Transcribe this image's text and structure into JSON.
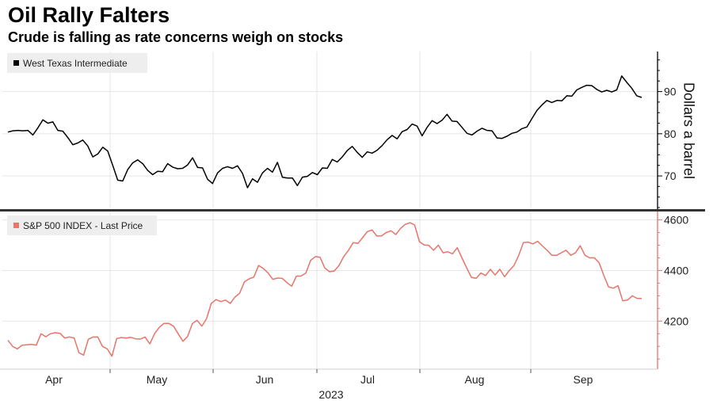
{
  "header": {
    "title": "Oil Rally Falters",
    "subtitle": "Crude is falling as rate concerns weigh on stocks"
  },
  "colors": {
    "wti": "#000000",
    "sp500": "#e8746a",
    "grid": "#e6e6e6",
    "axis": "#222222",
    "legend_bg": "#eeeeee",
    "divider": "#333333"
  },
  "chart_data": [
    {
      "type": "line",
      "legend": "West Texas Intermediate",
      "ylabel": "Dollars a barrel",
      "ylim": [
        62.5,
        99.5
      ],
      "yticks": [
        70,
        80,
        90
      ],
      "grid": true,
      "legend_position": "top-left",
      "series": [
        {
          "name": "West Texas Intermediate",
          "values": [
            80.4,
            80.7,
            80.8,
            80.7,
            80.8,
            79.7,
            81.4,
            83.3,
            82.5,
            82.8,
            80.8,
            80.6,
            79.1,
            77.4,
            77.8,
            78.5,
            77.1,
            74.5,
            75.2,
            76.8,
            75.9,
            72.5,
            69.0,
            68.8,
            71.5,
            73.1,
            73.8,
            72.9,
            71.3,
            70.3,
            71.1,
            71.0,
            72.9,
            72.1,
            71.7,
            71.8,
            72.6,
            74.3,
            72.0,
            71.9,
            69.2,
            68.2,
            70.7,
            71.8,
            72.2,
            71.8,
            72.4,
            70.6,
            67.2,
            69.3,
            68.5,
            70.7,
            71.8,
            70.9,
            73.2,
            69.7,
            69.5,
            69.5,
            67.7,
            69.7,
            69.9,
            70.8,
            70.3,
            71.9,
            71.8,
            73.9,
            73.3,
            74.5,
            76.0,
            77.0,
            75.6,
            74.4,
            75.7,
            75.4,
            76.1,
            77.2,
            78.6,
            79.6,
            78.8,
            80.5,
            81.0,
            82.3,
            81.8,
            79.5,
            81.5,
            83.1,
            82.4,
            83.2,
            84.6,
            83.0,
            82.9,
            81.5,
            80.1,
            79.7,
            80.6,
            81.3,
            80.8,
            80.7,
            79.0,
            78.9,
            79.4,
            80.1,
            80.4,
            81.2,
            81.6,
            83.6,
            85.5,
            86.8,
            87.9,
            87.4,
            87.9,
            87.8,
            89.0,
            88.9,
            90.4,
            91.0,
            91.5,
            91.4,
            90.5,
            89.9,
            90.3,
            89.9,
            90.4,
            93.7,
            92.2,
            90.8,
            89.0,
            88.6
          ]
        }
      ]
    },
    {
      "type": "line",
      "legend": "S&P 500 INDEX - Last Price",
      "ylim": [
        4010,
        4630
      ],
      "yticks": [
        4200,
        4400,
        4600
      ],
      "grid": true,
      "legend_position": "top-left",
      "x_axis": {
        "tick_labels": [
          "Apr",
          "May",
          "Jun",
          "Jul",
          "Aug",
          "Sep"
        ],
        "year_label": "2023"
      },
      "series": [
        {
          "name": "S&P 500 INDEX - Last Price",
          "values": [
            4124,
            4100,
            4090,
            4105,
            4106,
            4108,
            4105,
            4150,
            4138,
            4150,
            4154,
            4152,
            4133,
            4137,
            4133,
            4075,
            4065,
            4128,
            4137,
            4137,
            4100,
            4090,
            4061,
            4131,
            4135,
            4133,
            4136,
            4130,
            4129,
            4137,
            4110,
            4150,
            4175,
            4191,
            4191,
            4180,
            4150,
            4120,
            4140,
            4190,
            4203,
            4180,
            4209,
            4270,
            4285,
            4277,
            4283,
            4270,
            4295,
            4310,
            4355,
            4367,
            4374,
            4420,
            4408,
            4390,
            4365,
            4370,
            4369,
            4352,
            4338,
            4378,
            4378,
            4390,
            4440,
            4455,
            4452,
            4410,
            4395,
            4398,
            4420,
            4455,
            4480,
            4510,
            4507,
            4530,
            4554,
            4560,
            4536,
            4537,
            4550,
            4557,
            4542,
            4566,
            4582,
            4589,
            4580,
            4514,
            4501,
            4499,
            4480,
            4500,
            4470,
            4474,
            4466,
            4490,
            4450,
            4410,
            4373,
            4369,
            4390,
            4380,
            4405,
            4382,
            4405,
            4375,
            4400,
            4420,
            4460,
            4510,
            4512,
            4505,
            4515,
            4497,
            4480,
            4460,
            4460,
            4470,
            4480,
            4460,
            4470,
            4498,
            4460,
            4450,
            4450,
            4430,
            4380,
            4335,
            4330,
            4340,
            4280,
            4283,
            4300,
            4290,
            4289
          ]
        }
      ]
    }
  ]
}
